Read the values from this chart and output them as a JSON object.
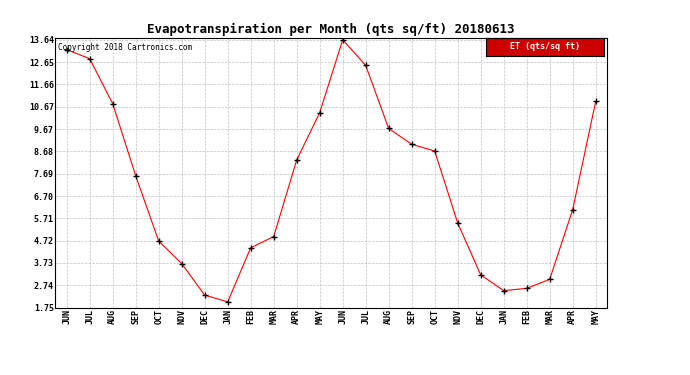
{
  "title": "Evapotranspiration per Month (qts sq/ft) 20180613",
  "copyright": "Copyright 2018 Cartronics.com",
  "legend_label": "ET (qts/sq ft)",
  "months": [
    "JUN",
    "JUL",
    "AUG",
    "SEP",
    "OCT",
    "NOV",
    "DEC",
    "JAN",
    "FEB",
    "MAR",
    "APR",
    "MAY",
    "JUN",
    "JUL",
    "AUG",
    "SEP",
    "OCT",
    "NOV",
    "DEC",
    "JAN",
    "FEB",
    "MAR",
    "APR",
    "MAY"
  ],
  "values": [
    13.2,
    12.8,
    10.8,
    7.6,
    4.7,
    3.7,
    2.3,
    2.0,
    4.4,
    4.9,
    8.3,
    10.4,
    13.64,
    12.5,
    9.7,
    9.0,
    8.7,
    5.5,
    3.2,
    2.5,
    2.6,
    3.0,
    6.1,
    10.9
  ],
  "ylim": [
    1.75,
    13.64
  ],
  "yticks": [
    1.75,
    2.74,
    3.73,
    4.72,
    5.71,
    6.7,
    7.69,
    8.68,
    9.67,
    10.67,
    11.66,
    12.65,
    13.64
  ],
  "line_color": "red",
  "marker": "+",
  "marker_color": "black",
  "background_color": "#ffffff",
  "grid_color": "#bbbbbb",
  "title_fontsize": 9,
  "tick_fontsize": 6,
  "copyright_fontsize": 5.5,
  "legend_bg": "#cc0000",
  "legend_text_color": "#ffffff",
  "legend_fontsize": 6
}
